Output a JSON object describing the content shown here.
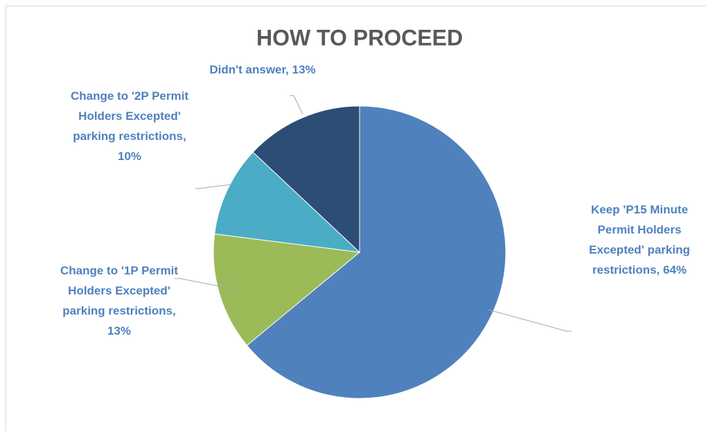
{
  "chart_data": {
    "type": "pie",
    "title": "HOW TO PROCEED",
    "categories": [
      "Keep 'P15 Minute Permit Holders Excepted' parking restrictions,",
      "Change to '1P Permit Holders Excepted' parking restrictions,",
      "Change to '2P Permit Holders Excepted' parking restrictions,",
      "Didn't answer,"
    ],
    "values": [
      64,
      13,
      10,
      13
    ],
    "value_labels": [
      "64%",
      "13%",
      "10%",
      "13%"
    ],
    "colors": [
      "#4f81bd",
      "#9bbb59",
      "#4bacc6",
      "#2c4d75"
    ]
  }
}
